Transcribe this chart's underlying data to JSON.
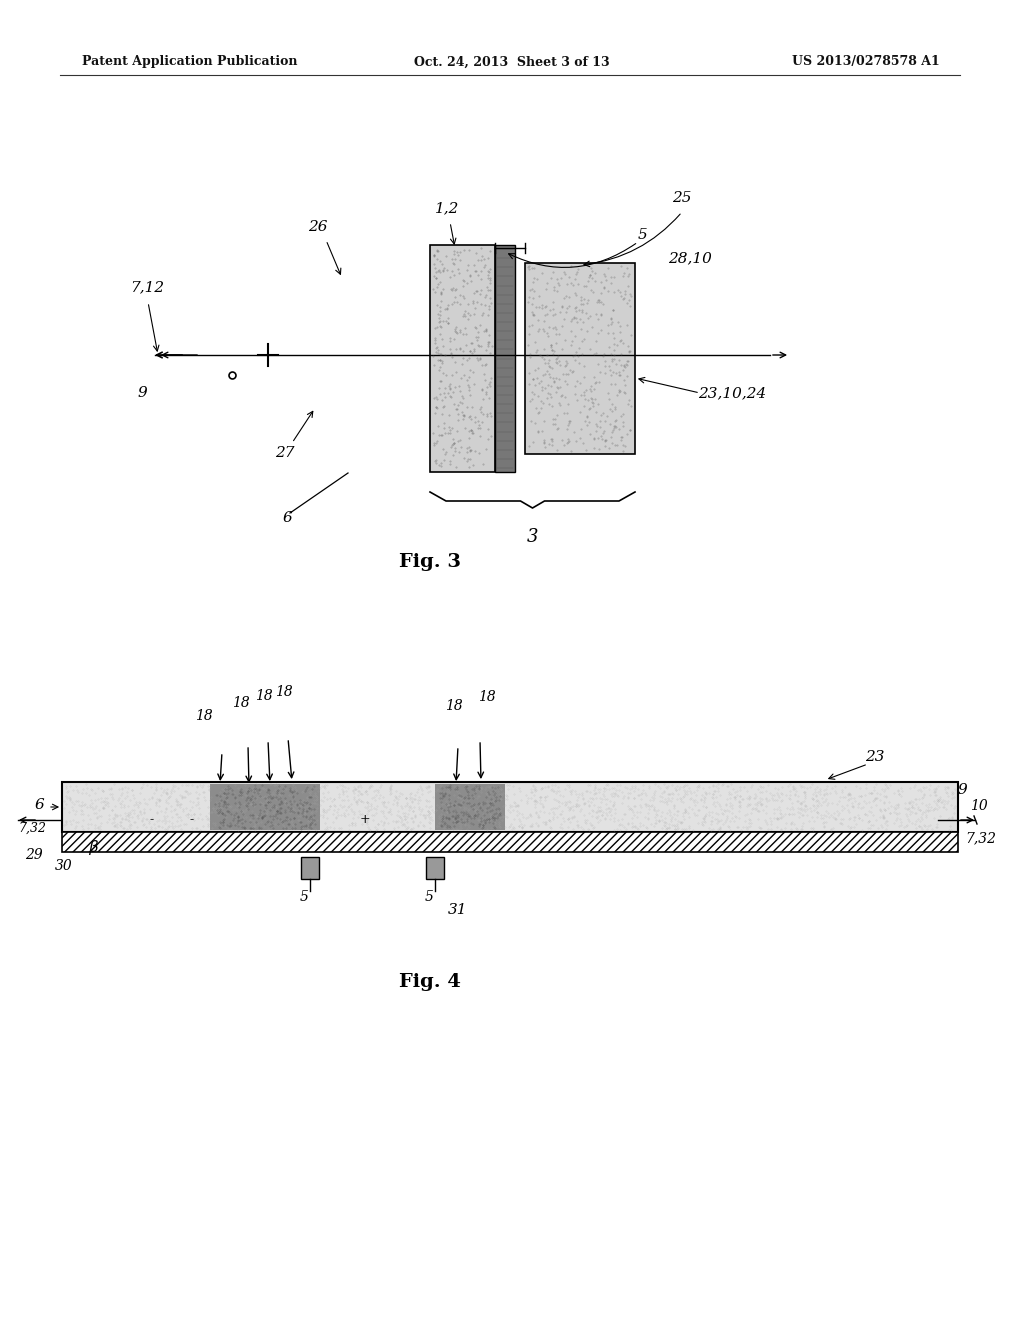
{
  "bg_color": "#ffffff",
  "header_left": "Patent Application Publication",
  "header_center": "Oct. 24, 2013  Sheet 3 of 13",
  "header_right": "US 2013/0278578 A1",
  "fig3_label": "Fig. 3",
  "fig4_label": "Fig. 4"
}
